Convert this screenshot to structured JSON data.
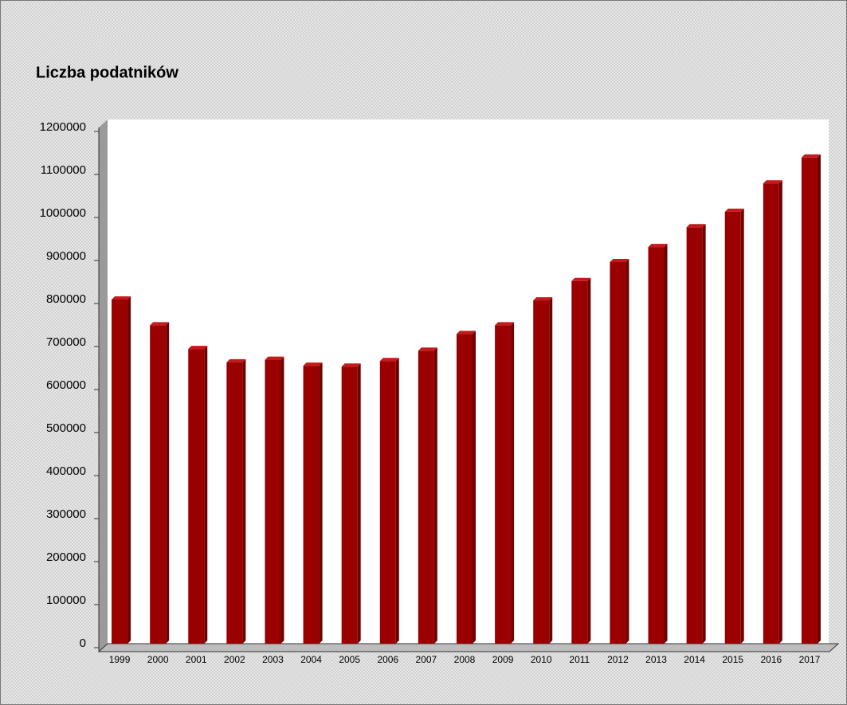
{
  "chart_data": {
    "type": "bar",
    "title": "Liczba podatników",
    "categories": [
      "1999",
      "2000",
      "2001",
      "2002",
      "2003",
      "2004",
      "2005",
      "2006",
      "2007",
      "2008",
      "2009",
      "2010",
      "2011",
      "2012",
      "2013",
      "2014",
      "2015",
      "2016",
      "2017"
    ],
    "values": [
      800000,
      740000,
      685000,
      654000,
      660000,
      646000,
      644000,
      657000,
      681000,
      720000,
      740000,
      798000,
      843000,
      887000,
      922000,
      968000,
      1004000,
      1070000,
      1130000
    ],
    "color": "#9b0000",
    "ylim": [
      0,
      1200000
    ],
    "yticks": [
      0,
      100000,
      200000,
      300000,
      400000,
      500000,
      600000,
      700000,
      800000,
      900000,
      1000000,
      1100000,
      1200000
    ],
    "grid": false
  }
}
